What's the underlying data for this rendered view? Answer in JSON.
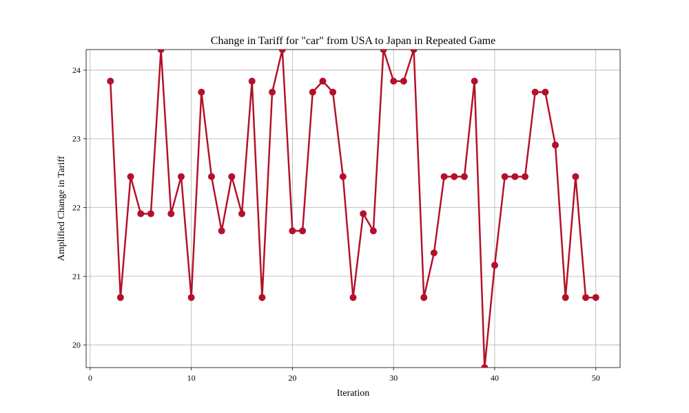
{
  "chart_data": {
    "type": "line",
    "title": "Change in Tariff for \"car\" from USA to Japan in Repeated Game",
    "xlabel": "Iteration",
    "ylabel": "Amplified Change in Tariff",
    "xlim": [
      -0.4,
      52.4
    ],
    "ylim": [
      19.67,
      24.3
    ],
    "xticks": [
      0,
      10,
      20,
      30,
      40,
      50
    ],
    "yticks": [
      20,
      21,
      22,
      23,
      24
    ],
    "grid": true,
    "series": [
      {
        "color": "#b5102a",
        "x": [
          2,
          3,
          4,
          5,
          6,
          7,
          8,
          9,
          10,
          11,
          12,
          13,
          14,
          15,
          16,
          17,
          18,
          19,
          20,
          21,
          22,
          23,
          24,
          25,
          26,
          27,
          28,
          29,
          30,
          31,
          32,
          33,
          34,
          35,
          36,
          37,
          38,
          39,
          40,
          41,
          42,
          43,
          44,
          45,
          46,
          47,
          48,
          49,
          50
        ],
        "y": [
          23.84,
          20.69,
          22.45,
          21.91,
          21.91,
          24.3,
          21.91,
          22.45,
          20.69,
          23.68,
          22.45,
          21.66,
          22.45,
          21.91,
          23.84,
          20.69,
          23.68,
          24.3,
          21.66,
          21.66,
          23.68,
          23.84,
          23.68,
          22.45,
          20.69,
          21.91,
          21.66,
          24.3,
          23.84,
          23.84,
          24.3,
          20.69,
          21.34,
          22.45,
          22.45,
          22.45,
          23.84,
          19.67,
          21.16,
          22.45,
          22.45,
          22.45,
          23.68,
          23.68,
          22.91,
          20.69,
          22.45,
          20.69,
          20.69
        ]
      }
    ]
  }
}
